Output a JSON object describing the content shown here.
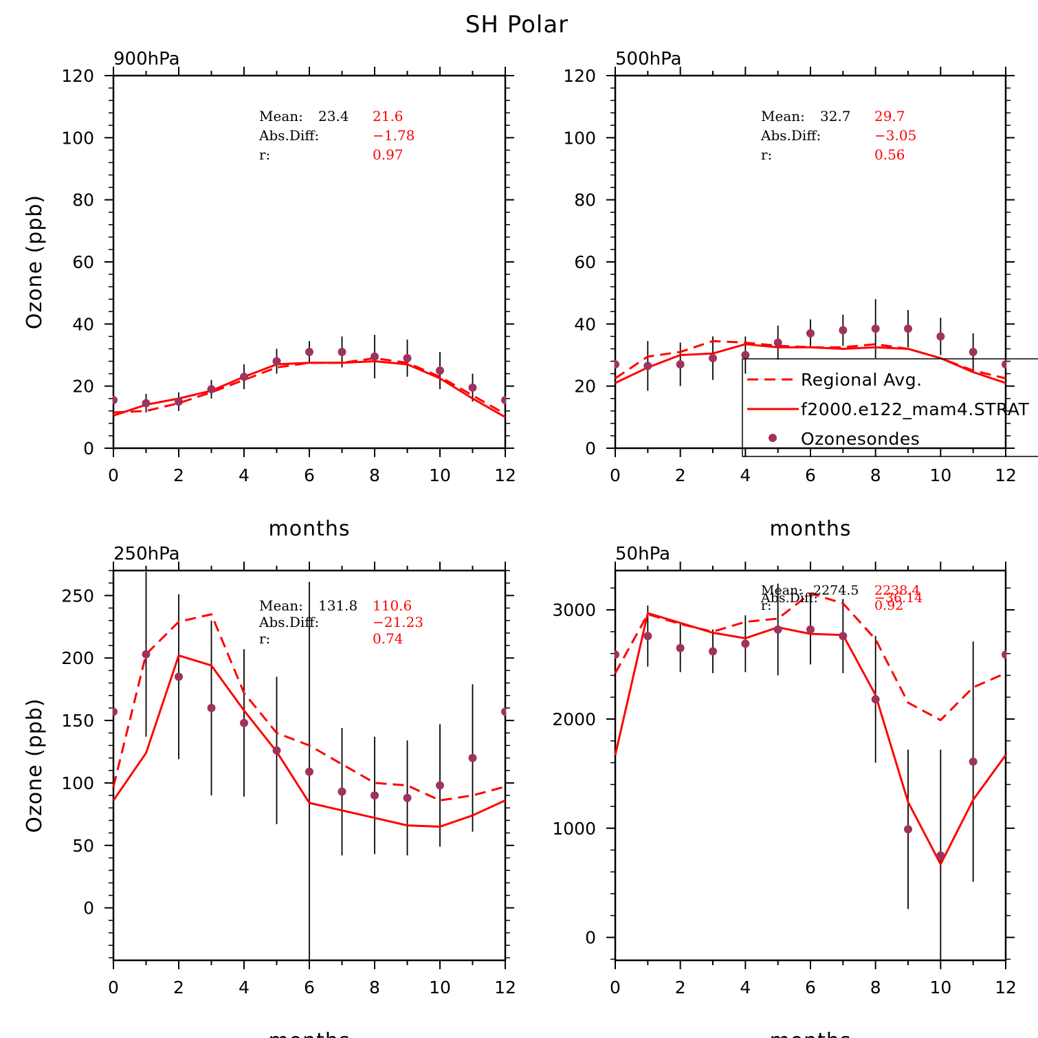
{
  "figure_title": "SH Polar",
  "colors": {
    "model": "#ff0000",
    "obs": "#a0325f",
    "axis": "#000000"
  },
  "legend": {
    "entries": [
      {
        "label": "Regional Avg.",
        "style": "dashed"
      },
      {
        "label": "f2000.e122_mam4.STRAT",
        "style": "solid"
      },
      {
        "label": "Ozonesondes",
        "style": "marker"
      }
    ]
  },
  "chart_data": [
    {
      "type": "line",
      "panel_title": "900hPa",
      "xlabel": "months",
      "ylabel": "Ozone (ppb)",
      "xlim": [
        0,
        12
      ],
      "ylim": [
        0,
        120
      ],
      "xticks": [
        0,
        2,
        4,
        6,
        8,
        10,
        12
      ],
      "yticks": [
        0,
        20,
        40,
        60,
        80,
        100,
        120
      ],
      "stats": {
        "mean_label": "Mean:",
        "mean_obs": "23.4",
        "mean_model": "21.6",
        "absdiff_label": "Abs.Diff:",
        "absdiff": "−1.78",
        "r_label": "r:",
        "r": "0.97"
      },
      "series": [
        {
          "name": "Regional Avg.",
          "style": "dashed",
          "x": [
            0,
            1,
            2,
            3,
            4,
            5,
            6,
            7,
            8,
            9,
            10,
            11,
            12
          ],
          "values": [
            11.5,
            12,
            14.5,
            18,
            22,
            26,
            27.5,
            27.5,
            29,
            27.5,
            23,
            17,
            11
          ]
        },
        {
          "name": "f2000.e122_mam4.STRAT",
          "style": "solid",
          "x": [
            0,
            1,
            2,
            3,
            4,
            5,
            6,
            7,
            8,
            9,
            10,
            11,
            12
          ],
          "values": [
            10.5,
            14,
            16,
            18.5,
            23,
            27,
            27.5,
            27.5,
            28,
            27,
            22.5,
            16,
            10
          ]
        }
      ],
      "observations": {
        "name": "Ozonesondes",
        "x": [
          0,
          1,
          2,
          3,
          4,
          5,
          6,
          7,
          8,
          9,
          10,
          11,
          12
        ],
        "values": [
          15.5,
          14.5,
          15,
          19,
          23,
          28,
          31,
          31,
          29.5,
          29,
          25,
          19.5,
          15.5
        ],
        "err": [
          2,
          3,
          3,
          3,
          4,
          4,
          3.5,
          5,
          7,
          6,
          6,
          4.5,
          2
        ]
      }
    },
    {
      "type": "line",
      "panel_title": "500hPa",
      "xlabel": "months",
      "ylabel": "",
      "xlim": [
        0,
        12
      ],
      "ylim": [
        0,
        120
      ],
      "xticks": [
        0,
        2,
        4,
        6,
        8,
        10,
        12
      ],
      "yticks": [
        0,
        20,
        40,
        60,
        80,
        100,
        120
      ],
      "stats": {
        "mean_label": "Mean:",
        "mean_obs": "32.7",
        "mean_model": "29.7",
        "absdiff_label": "Abs.Diff:",
        "absdiff": "−3.05",
        "r_label": "r:",
        "r": "0.56"
      },
      "legend_here": true,
      "series": [
        {
          "name": "Regional Avg.",
          "style": "dashed",
          "x": [
            0,
            1,
            2,
            3,
            4,
            5,
            6,
            7,
            8,
            9,
            10,
            11,
            12
          ],
          "values": [
            22.5,
            29.5,
            31,
            34.5,
            34,
            33,
            32.5,
            32.5,
            33.5,
            32,
            29,
            25,
            22.5
          ]
        },
        {
          "name": "f2000.e122_mam4.STRAT",
          "style": "solid",
          "x": [
            0,
            1,
            2,
            3,
            4,
            5,
            6,
            7,
            8,
            9,
            10,
            11,
            12
          ],
          "values": [
            21,
            26,
            30,
            30.5,
            33.5,
            32.5,
            32.5,
            32,
            32.5,
            32,
            29,
            24.5,
            21
          ]
        }
      ],
      "observations": {
        "name": "Ozonesondes",
        "x": [
          0,
          1,
          2,
          3,
          4,
          5,
          6,
          7,
          8,
          9,
          10,
          11,
          12
        ],
        "values": [
          27,
          26.5,
          27,
          29,
          30,
          34,
          37,
          38,
          38.5,
          38.5,
          36,
          31,
          27
        ],
        "err": [
          3,
          8,
          7,
          7,
          6,
          5.5,
          4.5,
          5,
          9.5,
          6,
          6,
          6,
          3
        ]
      }
    },
    {
      "type": "line",
      "panel_title": "250hPa",
      "xlabel": "months",
      "ylabel": "Ozone (ppb)",
      "xlim": [
        0,
        12
      ],
      "ylim": [
        -42,
        270
      ],
      "xticks": [
        0,
        2,
        4,
        6,
        8,
        10,
        12
      ],
      "yticks": [
        0,
        50,
        100,
        150,
        200,
        250
      ],
      "stats": {
        "mean_label": "Mean:",
        "mean_obs": "131.8",
        "mean_model": "110.6",
        "absdiff_label": "Abs.Diff:",
        "absdiff": "−21.23",
        "r_label": "r:",
        "r": "0.74"
      },
      "series": [
        {
          "name": "Regional Avg.",
          "style": "dashed",
          "x": [
            0,
            1,
            2,
            3,
            4,
            5,
            6,
            7,
            8,
            9,
            10,
            11,
            12
          ],
          "values": [
            97,
            203,
            229,
            235,
            172,
            140,
            130,
            115,
            100,
            98,
            86,
            90,
            97
          ]
        },
        {
          "name": "f2000.e122_mam4.STRAT",
          "style": "solid",
          "x": [
            0,
            1,
            2,
            3,
            4,
            5,
            6,
            7,
            8,
            9,
            10,
            11,
            12
          ],
          "values": [
            86,
            124,
            202,
            194,
            158,
            125,
            84,
            78,
            72,
            66,
            65,
            74,
            86
          ]
        }
      ],
      "observations": {
        "name": "Ozonesondes",
        "x": [
          0,
          1,
          2,
          3,
          4,
          5,
          6,
          7,
          8,
          9,
          10,
          11,
          12
        ],
        "values": [
          157,
          203,
          185,
          160,
          148,
          126,
          109,
          93,
          90,
          88,
          98,
          120,
          157
        ],
        "err": [
          8,
          66,
          66,
          70,
          59,
          59,
          152,
          51,
          47,
          46,
          49,
          59,
          8
        ]
      }
    },
    {
      "type": "line",
      "panel_title": "50hPa",
      "xlabel": "months",
      "ylabel": "",
      "xlim": [
        0,
        12
      ],
      "ylim": [
        -210,
        3360
      ],
      "xticks": [
        0,
        2,
        4,
        6,
        8,
        10,
        12
      ],
      "yticks": [
        0,
        1000,
        2000,
        3000
      ],
      "stats": {
        "mean_label": "Mean:",
        "mean_obs": "2274.5",
        "mean_model": "2238.4",
        "absdiff_label": "Abs.Diff:",
        "absdiff": "−36.14",
        "r_label": "r:",
        "r": "0.92"
      },
      "series": [
        {
          "name": "Regional Avg.",
          "style": "dashed",
          "x": [
            0,
            1,
            2,
            3,
            4,
            5,
            6,
            7,
            8,
            9,
            10,
            11,
            12
          ],
          "values": [
            2420,
            2960,
            2870,
            2800,
            2890,
            2920,
            3150,
            3060,
            2730,
            2150,
            1990,
            2290,
            2420
          ]
        },
        {
          "name": "f2000.e122_mam4.STRAT",
          "style": "solid",
          "x": [
            0,
            1,
            2,
            3,
            4,
            5,
            6,
            7,
            8,
            9,
            10,
            11,
            12
          ],
          "values": [
            1670,
            2970,
            2880,
            2790,
            2740,
            2840,
            2780,
            2770,
            2220,
            1240,
            670,
            1260,
            1670
          ]
        }
      ],
      "observations": {
        "name": "Ozonesondes",
        "x": [
          0,
          1,
          2,
          3,
          4,
          5,
          6,
          7,
          8,
          9,
          10,
          11,
          12
        ],
        "values": [
          2590,
          2760,
          2650,
          2620,
          2690,
          2820,
          2820,
          2760,
          2180,
          990,
          750,
          1610,
          2590
        ],
        "err": [
          50,
          280,
          220,
          200,
          260,
          420,
          320,
          340,
          580,
          730,
          970,
          1100,
          50
        ]
      }
    }
  ]
}
